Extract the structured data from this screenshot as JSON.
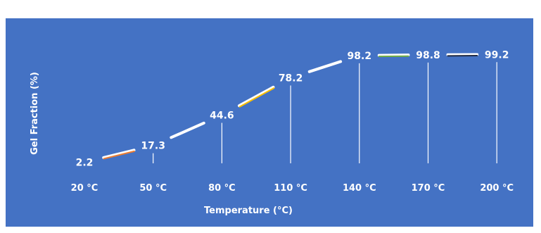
{
  "chart_data": {
    "type": "line",
    "categories": [
      "20 °C",
      "50 °C",
      "80 °C",
      "110 °C",
      "140 °C",
      "170 °C",
      "200 °C"
    ],
    "values": [
      2.2,
      17.3,
      44.6,
      78.2,
      98.2,
      98.8,
      99.2
    ],
    "data_labels": [
      "2.2",
      "17.3",
      "44.6",
      "78.2",
      "98.2",
      "98.8",
      "99.2"
    ],
    "title": "",
    "xlabel": "Temperature  (°C)",
    "ylabel": "Gel Fraction (%)",
    "ylim": [
      0,
      100
    ],
    "grid": false,
    "legend": "none",
    "colors": {
      "background": "#4472c4",
      "line": "#ffffff",
      "drop_line": "#ffffff",
      "segment_accents": [
        "#ed7d31",
        "#ffffff",
        "#ffc000",
        "#ffffff",
        "#70ad47",
        "#1f2a44"
      ]
    }
  }
}
